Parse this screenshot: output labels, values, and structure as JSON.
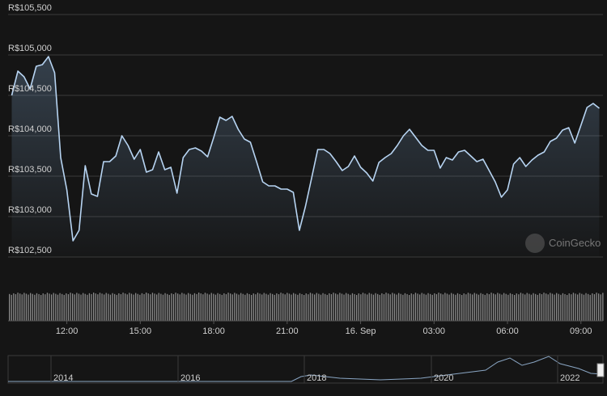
{
  "chart_data": {
    "type": "line",
    "watermark": "CoinGecko",
    "x": [
      9.75,
      10,
      10.25,
      10.5,
      10.75,
      11,
      11.25,
      11.5,
      11.75,
      12,
      12.25,
      12.5,
      12.75,
      13,
      13.25,
      13.5,
      13.75,
      14,
      14.25,
      14.5,
      14.75,
      15,
      15.25,
      15.5,
      15.75,
      16,
      16.25,
      16.5,
      16.75,
      17,
      17.25,
      17.5,
      17.75,
      18,
      18.25,
      18.5,
      18.75,
      19,
      19.25,
      19.5,
      19.75,
      20,
      20.25,
      20.5,
      20.75,
      21,
      21.25,
      21.5,
      21.75,
      22,
      22.25,
      22.5,
      22.75,
      23,
      23.25,
      23.5,
      23.75,
      24,
      24.25,
      24.5,
      24.75,
      25,
      25.25,
      25.5,
      25.75,
      26,
      26.25,
      26.5,
      26.75,
      27,
      27.25,
      27.5,
      27.75,
      28,
      28.25,
      28.5,
      28.75,
      29,
      29.25,
      29.5,
      29.75,
      30,
      30.25,
      30.5,
      30.75,
      31,
      31.25,
      31.5,
      31.75,
      32,
      32.25,
      32.5,
      32.75,
      33,
      33.25,
      33.5,
      33.75
    ],
    "series": [
      {
        "color": "#b7d4f2",
        "values": [
          104500,
          104800,
          104730,
          104580,
          104860,
          104880,
          104980,
          104780,
          103730,
          103330,
          102700,
          102830,
          103630,
          103280,
          103250,
          103680,
          103680,
          103750,
          104000,
          103880,
          103710,
          103830,
          103550,
          103580,
          103800,
          103580,
          103610,
          103290,
          103730,
          103830,
          103850,
          103810,
          103740,
          103980,
          104230,
          104190,
          104240,
          104080,
          103960,
          103920,
          103680,
          103430,
          103380,
          103380,
          103340,
          103340,
          103300,
          102830,
          103130,
          103480,
          103830,
          103830,
          103780,
          103680,
          103570,
          103620,
          103750,
          103610,
          103540,
          103440,
          103670,
          103730,
          103780,
          103880,
          104000,
          104080,
          103980,
          103880,
          103820,
          103820,
          103600,
          103730,
          103700,
          103800,
          103820,
          103750,
          103680,
          103710,
          103570,
          103430,
          103240,
          103330,
          103650,
          103730,
          103620,
          103700,
          103760,
          103800,
          103930,
          103970,
          104070,
          104100,
          103910,
          104130,
          104350,
          104400,
          104340
        ]
      }
    ],
    "xlim": [
      9.6,
      33.9
    ],
    "xticks": [
      {
        "value": 12,
        "label": "12:00"
      },
      {
        "value": 15,
        "label": "15:00"
      },
      {
        "value": 18,
        "label": "18:00"
      },
      {
        "value": 21,
        "label": "21:00"
      },
      {
        "value": 24,
        "label": "16. Sep"
      },
      {
        "value": 27,
        "label": "03:00"
      },
      {
        "value": 30,
        "label": "06:00"
      },
      {
        "value": 33,
        "label": "09:00"
      }
    ],
    "ylim": [
      102300,
      105700
    ],
    "yticks": [
      {
        "value": 102500,
        "label": "R$102,500"
      },
      {
        "value": 103000,
        "label": "R$103,000"
      },
      {
        "value": 103500,
        "label": "R$103,500"
      },
      {
        "value": 104000,
        "label": "R$104,000"
      },
      {
        "value": 104500,
        "label": "R$104,500"
      },
      {
        "value": 105000,
        "label": "R$105,000"
      },
      {
        "value": 105500,
        "label": "R$105,500"
      }
    ],
    "grid": true,
    "navigator_labels": [
      "2014",
      "2016",
      "2018",
      "2020",
      "2022"
    ]
  }
}
